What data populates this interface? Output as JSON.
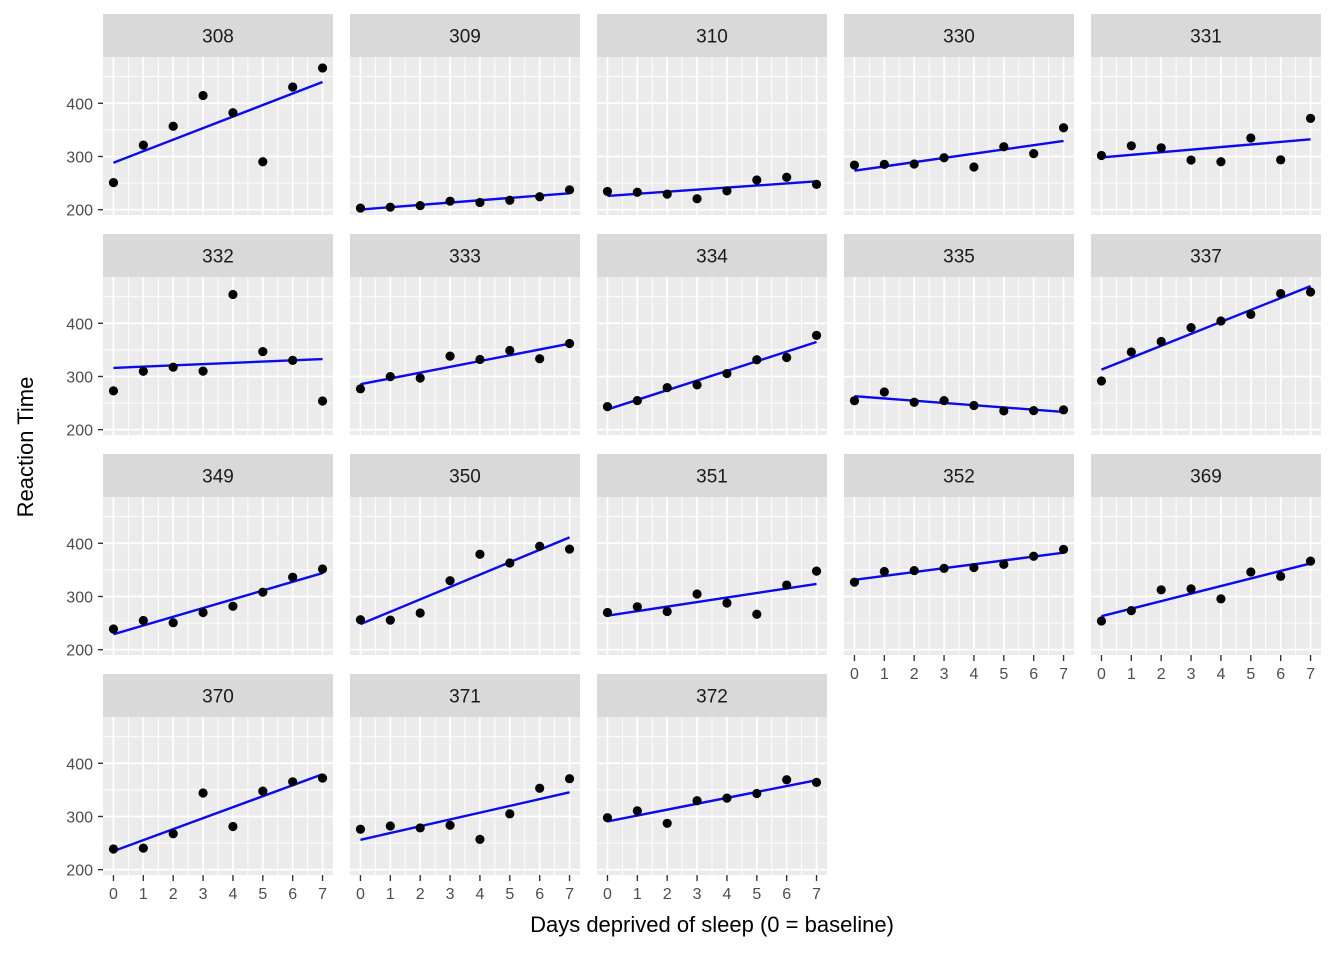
{
  "figure": {
    "x_axis_title": "Days deprived of sleep (0 = baseline)",
    "y_axis_title": "Reaction Time"
  },
  "style": {
    "strip_bg": "#d9d9d9",
    "strip_text_color": "#1a1a1a",
    "panel_bg": "#ebebeb",
    "grid_color": "#ffffff",
    "point_color": "#000000",
    "smooth_line_color": "#0a0aee",
    "axis_text_color": "#4d4d4d",
    "tick_mark_color": "#333333",
    "background": "#ffffff"
  },
  "chart_data": {
    "type": "scatter",
    "title": "",
    "xlabel": "Days deprived of sleep (0 = baseline)",
    "ylabel": "Reaction Time",
    "x": [
      0,
      1,
      2,
      3,
      4,
      5,
      6,
      7
    ],
    "x_ticks": [
      "0",
      "1",
      "2",
      "3",
      "4",
      "5",
      "6",
      "7"
    ],
    "y_ticks": [
      200,
      300,
      400
    ],
    "y_minor_ticks": [
      250,
      350,
      450
    ],
    "x_minor_ticks": [
      0.5,
      1.5,
      2.5,
      3.5,
      4.5,
      5.5,
      6.5
    ],
    "xlim": [
      -0.35,
      7.35
    ],
    "ylim": [
      190,
      487
    ],
    "grid": "white major and minor gridlines on grey panel",
    "legend": "none",
    "smooth": "per-facet ordinary least squares linear fit, blue line, no ribbon",
    "facet_layout": {
      "ncol": 5,
      "nrow": 4,
      "bottom_axis_facets": [
        "352",
        "369",
        "370",
        "371",
        "372"
      ]
    },
    "facets": [
      {
        "label": "308",
        "values": [
          250.8,
          321.4,
          356.9,
          414.7,
          382.2,
          290.1,
          430.6,
          466.4
        ]
      },
      {
        "label": "309",
        "values": [
          203.0,
          204.7,
          207.7,
          216.0,
          213.6,
          217.7,
          224.3,
          237.3
        ]
      },
      {
        "label": "310",
        "values": [
          234.3,
          232.8,
          229.3,
          220.5,
          235.4,
          255.8,
          261.0,
          247.5
        ]
      },
      {
        "label": "330",
        "values": [
          283.9,
          285.1,
          285.8,
          297.6,
          280.2,
          318.3,
          305.3,
          354.0
        ]
      },
      {
        "label": "331",
        "values": [
          301.8,
          320.1,
          316.3,
          293.3,
          290.1,
          334.8,
          293.7,
          371.6
        ]
      },
      {
        "label": "332",
        "values": [
          273.0,
          309.8,
          317.5,
          310.0,
          454.2,
          346.8,
          330.3,
          253.9
        ]
      },
      {
        "label": "333",
        "values": [
          276.8,
          299.8,
          297.2,
          338.2,
          332.0,
          348.8,
          333.4,
          362.0
        ]
      },
      {
        "label": "334",
        "values": [
          243.4,
          254.7,
          279.0,
          284.2,
          305.5,
          331.5,
          335.7,
          377.3
        ]
      },
      {
        "label": "335",
        "values": [
          254.5,
          270.8,
          251.5,
          254.6,
          245.5,
          235.3,
          235.8,
          237.2
        ]
      },
      {
        "label": "337",
        "values": [
          291.6,
          346.1,
          365.7,
          391.8,
          404.3,
          416.7,
          455.9,
          458.9
        ]
      },
      {
        "label": "349",
        "values": [
          238.9,
          254.9,
          250.7,
          269.8,
          281.6,
          308.1,
          336.3,
          351.6
        ]
      },
      {
        "label": "350",
        "values": [
          256.2,
          255.5,
          268.9,
          329.7,
          379.4,
          362.9,
          394.5,
          389.1
        ]
      },
      {
        "label": "351",
        "values": [
          269.9,
          280.6,
          271.8,
          304.6,
          287.7,
          266.6,
          321.5,
          347.6
        ]
      },
      {
        "label": "352",
        "values": [
          326.9,
          346.9,
          348.7,
          352.8,
          354.4,
          360.4,
          375.6,
          388.5
        ]
      },
      {
        "label": "369",
        "values": [
          254.0,
          273.4,
          312.5,
          314.4,
          295.5,
          346.1,
          337.9,
          366.4
        ]
      },
      {
        "label": "370",
        "values": [
          238.9,
          240.5,
          267.5,
          344.2,
          281.1,
          347.6,
          365.2,
          372.2
        ]
      },
      {
        "label": "371",
        "values": [
          276.0,
          282.2,
          278.5,
          283.5,
          257.0,
          305.0,
          353.0,
          371.0
        ]
      },
      {
        "label": "372",
        "values": [
          297.6,
          310.6,
          287.2,
          329.6,
          334.5,
          343.2,
          369.1,
          364.1
        ]
      }
    ]
  }
}
